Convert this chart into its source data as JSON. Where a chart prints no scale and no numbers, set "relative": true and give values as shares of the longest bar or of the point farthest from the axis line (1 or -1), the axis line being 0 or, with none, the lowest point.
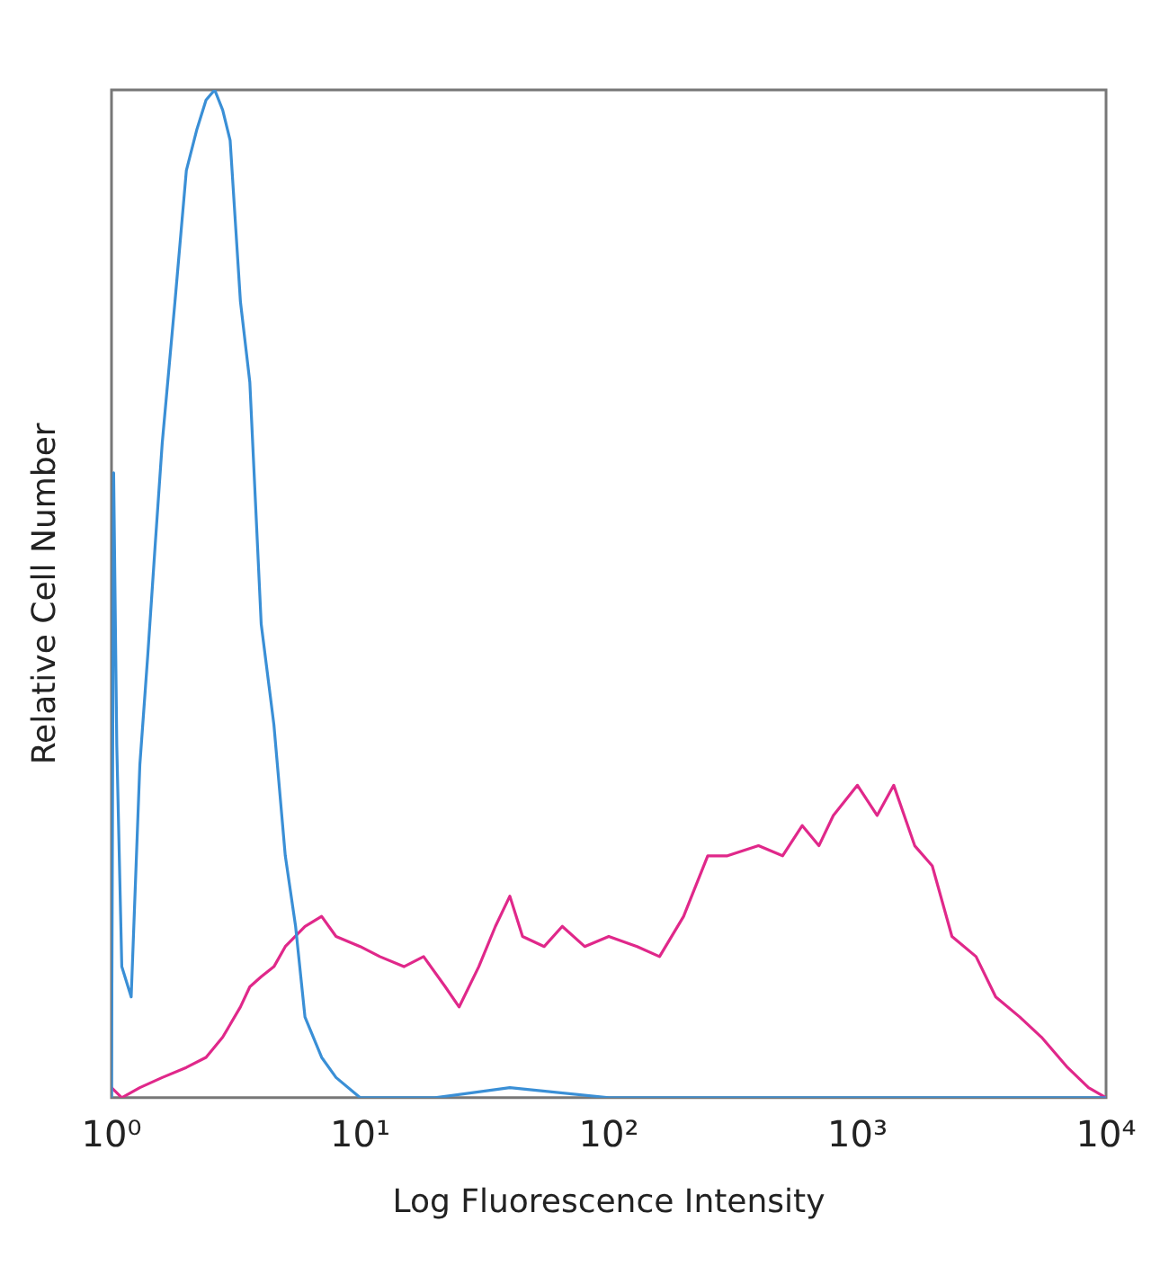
{
  "chart_data": {
    "type": "line",
    "relative": true,
    "log": "x",
    "xlabel": "Log Fluorescence Intensity",
    "ylabel": "Relative Cell Number",
    "xlim": [
      1,
      10000
    ],
    "xticks": [
      {
        "value": 1,
        "label": "10⁰"
      },
      {
        "value": 10,
        "label": "10¹"
      },
      {
        "value": 100,
        "label": "10²"
      },
      {
        "value": 1000,
        "label": "10³"
      },
      {
        "value": 10000,
        "label": "10⁴"
      }
    ],
    "grid": false,
    "legend": false,
    "marker": "none",
    "line_style": "solid",
    "series": [
      {
        "color": "#3a8fd6",
        "x": [
          1,
          1.02,
          1.05,
          1.1,
          1.2,
          1.3,
          1.4,
          1.5,
          1.6,
          1.8,
          2,
          2.2,
          2.4,
          2.6,
          2.8,
          3,
          3.3,
          3.6,
          4,
          4.5,
          5,
          5.5,
          6,
          7,
          8,
          10,
          15,
          20,
          40,
          100,
          1000,
          10000
        ],
        "values": [
          0,
          0.62,
          0.35,
          0.13,
          0.1,
          0.33,
          0.44,
          0.55,
          0.65,
          0.79,
          0.92,
          0.96,
          0.99,
          1,
          0.98,
          0.95,
          0.79,
          0.71,
          0.47,
          0.37,
          0.24,
          0.17,
          0.08,
          0.04,
          0.02,
          0,
          0,
          0,
          0.01,
          0,
          0,
          0
        ]
      },
      {
        "color": "#e0288a",
        "x": [
          1,
          1.1,
          1.3,
          1.6,
          2,
          2.4,
          2.8,
          3.3,
          3.6,
          4,
          4.5,
          5,
          6,
          7,
          8,
          10,
          12,
          15,
          18,
          22,
          25,
          30,
          35,
          40,
          45,
          55,
          65,
          80,
          100,
          130,
          160,
          200,
          250,
          300,
          400,
          500,
          600,
          700,
          800,
          1000,
          1200,
          1400,
          1700,
          2000,
          2400,
          3000,
          3600,
          4500,
          5500,
          7000,
          8500,
          10000
        ],
        "values": [
          0.01,
          0,
          0.01,
          0.02,
          0.03,
          0.04,
          0.06,
          0.09,
          0.11,
          0.12,
          0.13,
          0.15,
          0.17,
          0.18,
          0.16,
          0.15,
          0.14,
          0.13,
          0.14,
          0.11,
          0.09,
          0.13,
          0.17,
          0.2,
          0.16,
          0.15,
          0.17,
          0.15,
          0.16,
          0.15,
          0.14,
          0.18,
          0.24,
          0.24,
          0.25,
          0.24,
          0.27,
          0.25,
          0.28,
          0.31,
          0.28,
          0.31,
          0.25,
          0.23,
          0.16,
          0.14,
          0.1,
          0.08,
          0.06,
          0.03,
          0.01,
          0
        ]
      }
    ]
  }
}
